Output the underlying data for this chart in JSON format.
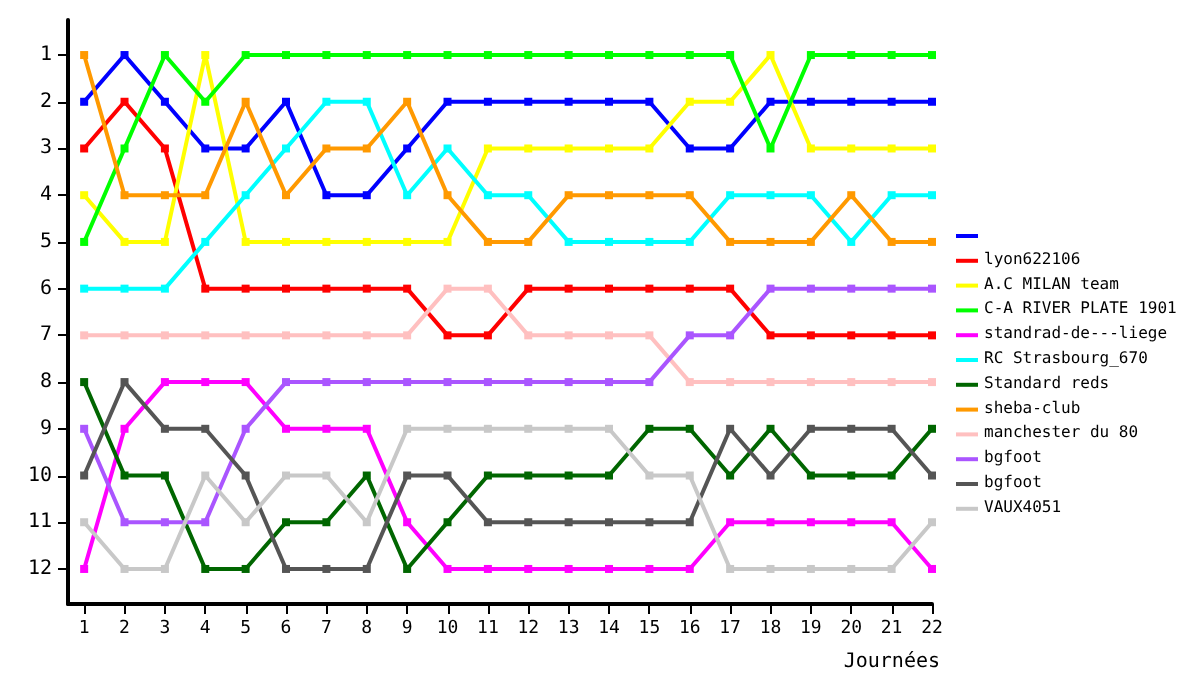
{
  "chart_data": {
    "type": "line",
    "xlabel": "Journées",
    "x": [
      1,
      2,
      3,
      4,
      5,
      6,
      7,
      8,
      9,
      10,
      11,
      12,
      13,
      14,
      15,
      16,
      17,
      18,
      19,
      20,
      21,
      22
    ],
    "xlim": [
      0.6,
      22
    ],
    "xticks": [
      1,
      2,
      3,
      4,
      5,
      6,
      7,
      8,
      9,
      10,
      11,
      12,
      13,
      14,
      15,
      16,
      17,
      18,
      19,
      20,
      21,
      22
    ],
    "ylim": [
      12.75,
      0.25
    ],
    "yticks": [
      1,
      2,
      3,
      4,
      5,
      6,
      7,
      8,
      9,
      10,
      11,
      12
    ],
    "grid": false,
    "legend": "right",
    "marker": "square",
    "line_style": "solid",
    "series": [
      {
        "color": "#0000ff",
        "values": [
          2,
          1,
          2,
          3,
          3,
          2,
          4,
          4,
          3,
          2,
          2,
          2,
          2,
          2,
          2,
          3,
          3,
          2,
          2,
          2,
          2,
          2
        ]
      },
      {
        "name": "lyon622106",
        "color": "#ff0000",
        "values": [
          3,
          2,
          3,
          6,
          6,
          6,
          6,
          6,
          6,
          7,
          7,
          6,
          6,
          6,
          6,
          6,
          6,
          7,
          7,
          7,
          7,
          7
        ]
      },
      {
        "name": "A.C MILAN team",
        "color": "#ffff00",
        "values": [
          4,
          5,
          5,
          1,
          5,
          5,
          5,
          5,
          5,
          5,
          3,
          3,
          3,
          3,
          3,
          2,
          2,
          1,
          3,
          3,
          3,
          3
        ]
      },
      {
        "name": "C-A RIVER PLATE 1901",
        "color": "#00ff00",
        "values": [
          5,
          3,
          1,
          2,
          1,
          1,
          1,
          1,
          1,
          1,
          1,
          1,
          1,
          1,
          1,
          1,
          1,
          3,
          1,
          1,
          1,
          1
        ]
      },
      {
        "name": "standrad-de---liege",
        "color": "#ff00ff",
        "values": [
          12,
          9,
          8,
          8,
          8,
          9,
          9,
          9,
          11,
          12,
          12,
          12,
          12,
          12,
          12,
          12,
          11,
          11,
          11,
          11,
          11,
          12
        ]
      },
      {
        "name": "RC Strasbourg_670",
        "color": "#00ffff",
        "values": [
          6,
          6,
          6,
          5,
          4,
          3,
          2,
          2,
          4,
          3,
          4,
          4,
          5,
          5,
          5,
          5,
          4,
          4,
          4,
          5,
          4,
          4
        ]
      },
      {
        "name": "Standard reds",
        "color": "#006600",
        "values": [
          8,
          10,
          10,
          12,
          12,
          11,
          11,
          10,
          12,
          11,
          10,
          10,
          10,
          10,
          9,
          9,
          10,
          9,
          10,
          10,
          10,
          9
        ]
      },
      {
        "name": "sheba-club",
        "color": "#ff9900",
        "values": [
          1,
          4,
          4,
          4,
          2,
          4,
          3,
          3,
          2,
          4,
          5,
          5,
          4,
          4,
          4,
          4,
          5,
          5,
          5,
          4,
          5,
          5
        ]
      },
      {
        "name": "manchester du 80",
        "color": "#ffc0c0",
        "values": [
          7,
          7,
          7,
          7,
          7,
          7,
          7,
          7,
          7,
          6,
          6,
          7,
          7,
          7,
          7,
          8,
          8,
          8,
          8,
          8,
          8,
          8
        ]
      },
      {
        "name": "bgfoot",
        "color": "#aa55ff",
        "values": [
          9,
          11,
          11,
          11,
          9,
          8,
          8,
          8,
          8,
          8,
          8,
          8,
          8,
          8,
          8,
          7,
          7,
          6,
          6,
          6,
          6,
          6
        ]
      },
      {
        "name": "bgfoot",
        "color": "#555555",
        "values": [
          10,
          8,
          9,
          9,
          10,
          12,
          12,
          12,
          10,
          10,
          11,
          11,
          11,
          11,
          11,
          11,
          9,
          10,
          9,
          9,
          9,
          10
        ]
      },
      {
        "name": "VAUX4051",
        "color": "#c8c8c8",
        "values": [
          11,
          12,
          12,
          10,
          11,
          10,
          10,
          11,
          9,
          9,
          9,
          9,
          9,
          9,
          10,
          10,
          12,
          12,
          12,
          12,
          12,
          11
        ]
      }
    ]
  }
}
